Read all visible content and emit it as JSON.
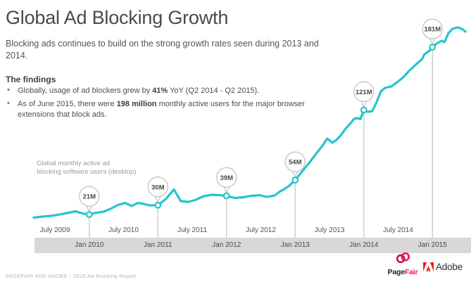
{
  "header": {
    "title": "Global Ad Blocking Growth",
    "subtitle": "Blocking ads continues to build on the strong growth rates seen during 2013 and 2014."
  },
  "findings": {
    "heading": "The findings",
    "bullets": [
      {
        "pre": "Globally, usage of ad blockers grew by ",
        "bold": "41%",
        "post": " YoY (Q2 2014 - Q2 2015)."
      },
      {
        "pre": "As of June 2015, there were ",
        "bold": "198 million",
        "post": " monthly active users for the major browser extensions that block ads."
      }
    ]
  },
  "chart_data": {
    "type": "line",
    "title": "Global monthly active ad\nblocking software users (desktop)",
    "unit": "millions of monthly active users",
    "line_color": "#26c4cd",
    "axis_band_color": "#d8d8d8",
    "time_origin": "months since Jan 2009",
    "x_range_months": [
      2.3,
      77.8
    ],
    "y_range_millions": [
      0,
      210
    ],
    "markers": [
      {
        "label": "21M",
        "value": 21,
        "t": 12,
        "date": "Jan 2010"
      },
      {
        "label": "30M",
        "value": 30,
        "t": 24,
        "date": "Jan 2011"
      },
      {
        "label": "39M",
        "value": 39,
        "t": 36,
        "date": "Jan 2012"
      },
      {
        "label": "54M",
        "value": 54,
        "t": 48,
        "date": "Jan 2013"
      },
      {
        "label": "121M",
        "value": 121,
        "t": 60,
        "date": "Jan 2014"
      },
      {
        "label": "181M",
        "value": 181,
        "t": 72,
        "date": "Jan 2015"
      }
    ],
    "x_axis": {
      "july_labels": [
        {
          "label": "July 2009",
          "t": 6
        },
        {
          "label": "July 2010",
          "t": 18
        },
        {
          "label": "July 2011",
          "t": 30
        },
        {
          "label": "July 2012",
          "t": 42
        },
        {
          "label": "July 2013",
          "t": 54
        },
        {
          "label": "July 2014",
          "t": 66
        }
      ],
      "jan_labels": [
        {
          "label": "Jan 2010",
          "t": 12
        },
        {
          "label": "Jan 2011",
          "t": 24
        },
        {
          "label": "Jan 2012",
          "t": 36
        },
        {
          "label": "Jan 2013",
          "t": 48
        },
        {
          "label": "Jan 2014",
          "t": 60
        },
        {
          "label": "Jan 2015",
          "t": 72
        }
      ]
    },
    "series": [
      {
        "name": "Ad blocking software users (desktop, millions)",
        "points": [
          [
            2.3,
            18.1
          ],
          [
            3.8,
            19.1
          ],
          [
            5.4,
            19.8
          ],
          [
            7.1,
            21.4
          ],
          [
            8.7,
            23.1
          ],
          [
            9.6,
            24.1
          ],
          [
            10.8,
            22.2
          ],
          [
            12,
            21
          ],
          [
            12.8,
            22.4
          ],
          [
            14.5,
            23.8
          ],
          [
            15.7,
            26.5
          ],
          [
            17,
            30.2
          ],
          [
            18.3,
            32.2
          ],
          [
            19.4,
            29.2
          ],
          [
            20.5,
            32.2
          ],
          [
            21.5,
            31.2
          ],
          [
            22.6,
            29.8
          ],
          [
            24,
            30
          ],
          [
            25.4,
            35.9
          ],
          [
            26.8,
            45
          ],
          [
            28,
            33.9
          ],
          [
            29.3,
            33.2
          ],
          [
            30.5,
            34.9
          ],
          [
            32,
            38.6
          ],
          [
            33.4,
            39.9
          ],
          [
            34.7,
            39.6
          ],
          [
            36,
            39
          ],
          [
            37.4,
            36.9
          ],
          [
            38.9,
            37.6
          ],
          [
            40.3,
            38.9
          ],
          [
            41.8,
            39.6
          ],
          [
            43,
            37.9
          ],
          [
            44.4,
            39.2
          ],
          [
            45.4,
            43.3
          ],
          [
            46.1,
            45.3
          ],
          [
            47,
            48.7
          ],
          [
            48,
            54
          ],
          [
            49.3,
            62.8
          ],
          [
            50.6,
            71.5
          ],
          [
            51.8,
            80.2
          ],
          [
            52.8,
            87
          ],
          [
            53.6,
            93.7
          ],
          [
            54.5,
            89.7
          ],
          [
            55.2,
            92.3
          ],
          [
            56,
            97
          ],
          [
            56.8,
            103.1
          ],
          [
            57.6,
            107.8
          ],
          [
            58.3,
            112.5
          ],
          [
            58.9,
            113.2
          ],
          [
            59.4,
            112.2
          ],
          [
            60,
            121
          ],
          [
            60.7,
            119.2
          ],
          [
            61.5,
            119.9
          ],
          [
            62.2,
            128
          ],
          [
            63,
            138.7
          ],
          [
            63.7,
            142.1
          ],
          [
            64.8,
            143.4
          ],
          [
            65.8,
            147.4
          ],
          [
            66.9,
            152.2
          ],
          [
            67.9,
            158.2
          ],
          [
            68.8,
            162.9
          ],
          [
            69.5,
            166.3
          ],
          [
            70.2,
            169.6
          ],
          [
            70.6,
            174.3
          ],
          [
            71.5,
            177.7
          ],
          [
            72,
            181
          ],
          [
            72.7,
            184.4
          ],
          [
            73.6,
            187.1
          ],
          [
            74.1,
            185.8
          ],
          [
            74.8,
            194.5
          ],
          [
            75.5,
            198.5
          ],
          [
            76.4,
            199.9
          ],
          [
            77.1,
            198.5
          ],
          [
            77.8,
            195.8
          ]
        ]
      }
    ]
  },
  "footer": {
    "source": "PAGEFAIR AND ADOBE",
    "separator": "|",
    "report": "2015 Ad Blocking Report",
    "pagefair_logo": {
      "dark": "Page",
      "red": "Fair",
      "red_color": "#e8174f"
    },
    "adobe_logo": {
      "text": "Adobe",
      "red_color": "#fa0f00"
    }
  }
}
